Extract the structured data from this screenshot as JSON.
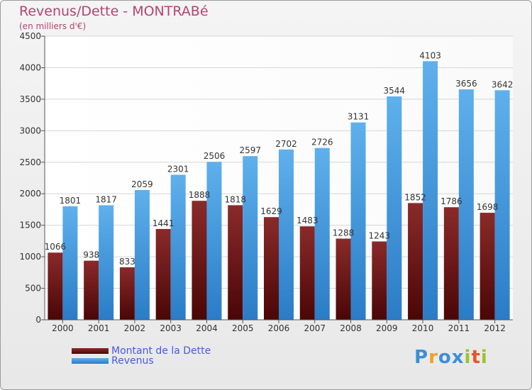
{
  "chart_data": {
    "type": "bar",
    "title": "Revenus/Dette - MONTRABé",
    "subtitle": "(en milliers d'€)",
    "categories": [
      "2000",
      "2001",
      "2002",
      "2003",
      "2004",
      "2005",
      "2006",
      "2007",
      "2008",
      "2009",
      "2010",
      "2011",
      "2012"
    ],
    "series": [
      {
        "name": "Montant de la Dette",
        "color": "#6e1414",
        "values": [
          1066,
          938,
          833,
          1441,
          1888,
          1818,
          1629,
          1483,
          1288,
          1243,
          1852,
          1786,
          1698
        ]
      },
      {
        "name": "Revenus",
        "color": "#4a9de0",
        "values": [
          1801,
          1817,
          2059,
          2301,
          2506,
          2597,
          2702,
          2726,
          3131,
          3544,
          4103,
          3656,
          3642
        ]
      }
    ],
    "ylim": [
      0,
      4500
    ],
    "yticks": [
      0,
      500,
      1000,
      1500,
      2000,
      2500,
      3000,
      3500,
      4000,
      4500
    ],
    "grid": true,
    "legend": "bottom-left"
  },
  "legend": {
    "debt_label": "Montant de la Dette",
    "revenue_label": "Revenus"
  },
  "brand": {
    "logo_letters": [
      "P",
      "r",
      "o",
      "x",
      "i",
      "t",
      "i"
    ],
    "logo_colors": [
      "#3c8fd6",
      "#f0a022",
      "#3c8fd6",
      "#3c8fd6",
      "#9bc32f",
      "#e8542a",
      "#9bc32f"
    ]
  }
}
